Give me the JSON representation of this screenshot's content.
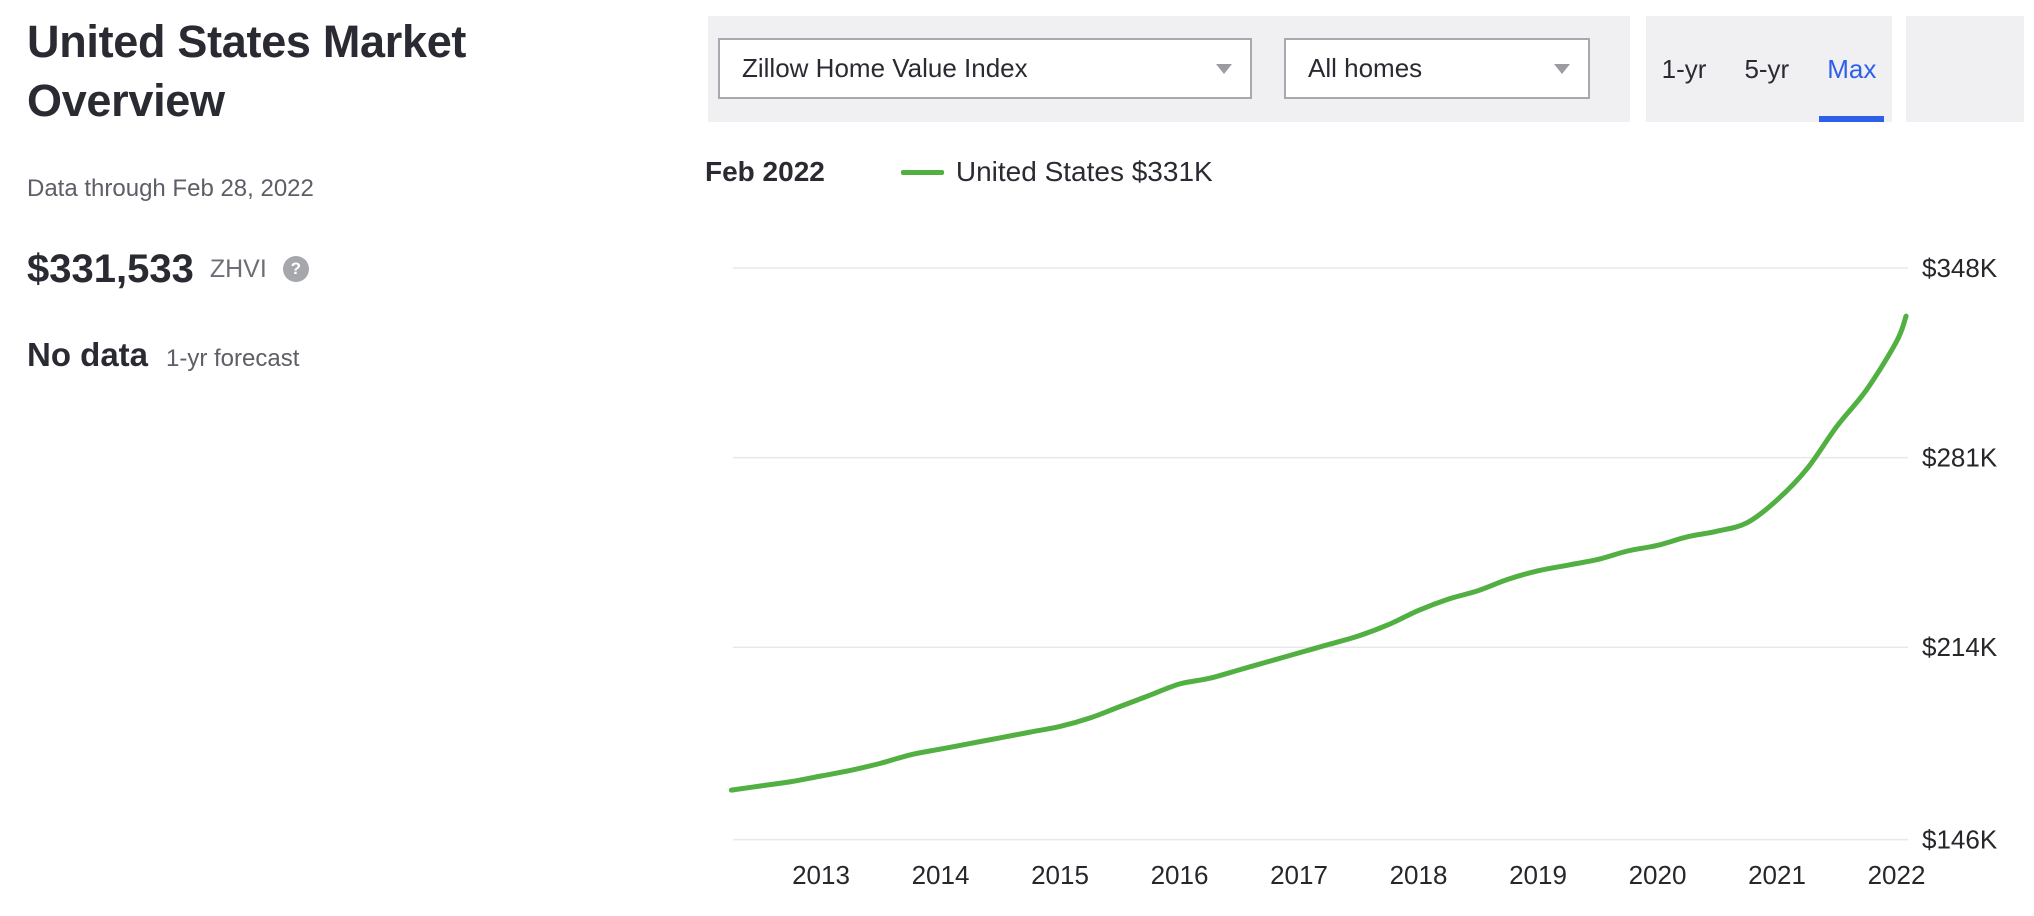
{
  "left_panel": {
    "title": "United States Market Overview",
    "data_through": "Data through Feb 28, 2022",
    "zhvi_value": "$331,533",
    "zhvi_label": "ZHVI",
    "help_icon_glyph": "?",
    "forecast_value": "No data",
    "forecast_label": "1-yr forecast"
  },
  "toolbar": {
    "metric_dropdown": {
      "value": "Zillow Home Value Index"
    },
    "home_type_dropdown": {
      "value": "All homes"
    },
    "range_tabs": [
      {
        "label": "1-yr",
        "active": false
      },
      {
        "label": "5-yr",
        "active": false
      },
      {
        "label": "Max",
        "active": true
      }
    ]
  },
  "legend": {
    "date": "Feb 2022",
    "series_label": "United States $331K"
  },
  "colors": {
    "line_green": "#52b043",
    "accent_blue": "#2e5fe8",
    "toolbar_gray": "#f0f0f3",
    "gridline": "#e8e8eb",
    "text_dark": "#26262b",
    "text_gray": "#5d5e66"
  },
  "chart_data": {
    "type": "line",
    "title": "",
    "xlabel": "",
    "ylabel": "",
    "unit": "USD thousands",
    "grid": "horizontal-only",
    "legend_position": "top-left",
    "xlim": [
      2012.1,
      2022.4
    ],
    "ylim": [
      140,
      355
    ],
    "x_ticks": [
      2013,
      2014,
      2015,
      2016,
      2017,
      2018,
      2019,
      2020,
      2021,
      2022
    ],
    "y_ticks": [
      {
        "value": 348,
        "label": "$348K"
      },
      {
        "value": 281,
        "label": "$281K"
      },
      {
        "value": 214,
        "label": "$214K"
      },
      {
        "value": 146,
        "label": "$146K"
      }
    ],
    "series": [
      {
        "name": "United States",
        "color": "#52b043",
        "points": [
          [
            2012.25,
            163.5
          ],
          [
            2012.5,
            165
          ],
          [
            2012.75,
            166.5
          ],
          [
            2013.0,
            168.5
          ],
          [
            2013.25,
            170.5
          ],
          [
            2013.5,
            173
          ],
          [
            2013.75,
            176
          ],
          [
            2014.0,
            178
          ],
          [
            2014.25,
            180
          ],
          [
            2014.5,
            182
          ],
          [
            2014.75,
            184
          ],
          [
            2015.0,
            186
          ],
          [
            2015.25,
            189
          ],
          [
            2015.5,
            193
          ],
          [
            2015.75,
            197
          ],
          [
            2016.0,
            201
          ],
          [
            2016.25,
            203
          ],
          [
            2016.5,
            206
          ],
          [
            2016.75,
            209
          ],
          [
            2017.0,
            212
          ],
          [
            2017.25,
            215
          ],
          [
            2017.5,
            218
          ],
          [
            2017.75,
            222
          ],
          [
            2018.0,
            227
          ],
          [
            2018.25,
            231
          ],
          [
            2018.5,
            234
          ],
          [
            2018.75,
            238
          ],
          [
            2019.0,
            241
          ],
          [
            2019.25,
            243
          ],
          [
            2019.5,
            245
          ],
          [
            2019.75,
            248
          ],
          [
            2020.0,
            250
          ],
          [
            2020.25,
            253
          ],
          [
            2020.5,
            255
          ],
          [
            2020.75,
            258
          ],
          [
            2021.0,
            266
          ],
          [
            2021.25,
            277
          ],
          [
            2021.5,
            292
          ],
          [
            2021.75,
            305
          ],
          [
            2022.0,
            322
          ],
          [
            2022.08,
            331
          ]
        ]
      }
    ]
  }
}
